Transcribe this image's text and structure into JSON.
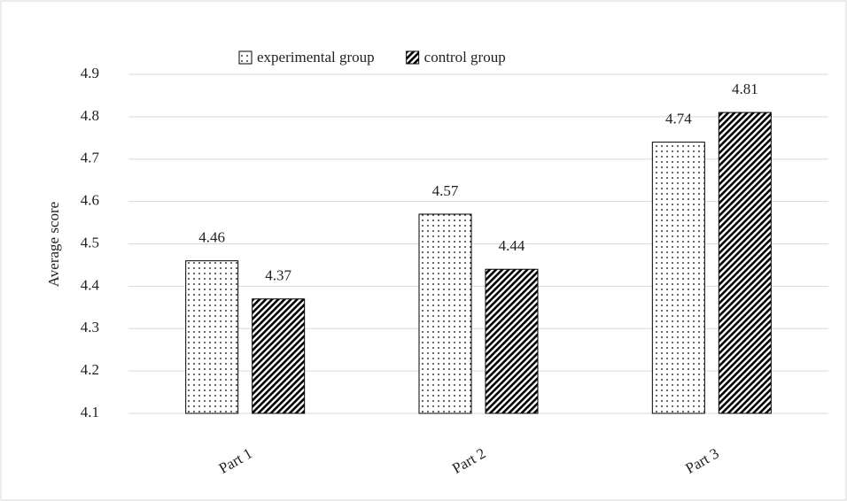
{
  "chart_data": {
    "type": "bar",
    "y_label": "Average score",
    "categories": [
      "Part 1",
      "Part 2",
      "Part 3"
    ],
    "series": [
      {
        "name": "experimental group",
        "color": "#000000",
        "pattern": "dots",
        "values": [
          4.46,
          4.57,
          4.74
        ]
      },
      {
        "name": "control group",
        "color": "#000000",
        "pattern": "stripes",
        "values": [
          4.37,
          4.44,
          4.81
        ]
      }
    ],
    "ylim": [
      4.1,
      4.9
    ],
    "yticks": [
      4.1,
      4.2,
      4.3,
      4.4,
      4.5,
      4.6,
      4.7,
      4.8,
      4.9
    ],
    "grid": true,
    "legend": "top"
  }
}
